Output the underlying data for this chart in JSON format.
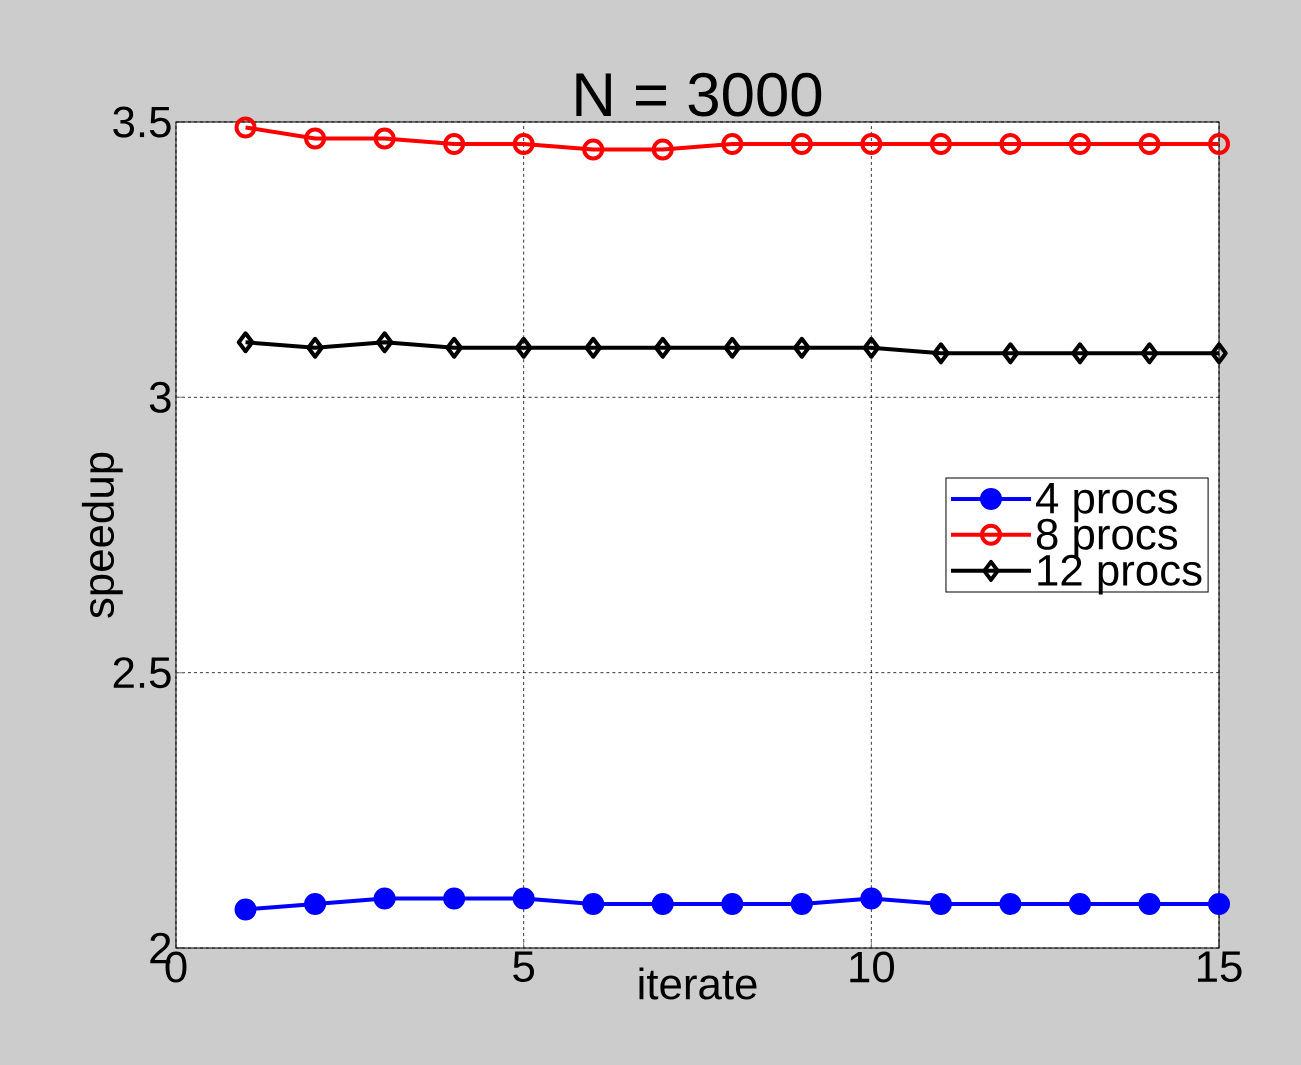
{
  "chart_data": {
    "type": "line",
    "title": "N = 3000",
    "xlabel": "iterate",
    "ylabel": "speedup",
    "x": [
      1,
      2,
      3,
      4,
      5,
      6,
      7,
      8,
      9,
      10,
      11,
      12,
      13,
      14,
      15
    ],
    "xlim": [
      0,
      15
    ],
    "xticks": [
      0,
      5,
      10,
      15
    ],
    "ylim": [
      2,
      3.5
    ],
    "yticks": [
      2,
      2.5,
      3,
      3.5
    ],
    "grid": true,
    "legend": "right",
    "line_style": "solid",
    "series": [
      {
        "name": "4 procs",
        "color": "#0000ff",
        "marker": "circle",
        "values": [
          2.07,
          2.08,
          2.09,
          2.09,
          2.09,
          2.08,
          2.08,
          2.08,
          2.08,
          2.09,
          2.08,
          2.08,
          2.08,
          2.08,
          2.08
        ]
      },
      {
        "name": "8 procs",
        "color": "#ff0000",
        "marker": "circle",
        "values": [
          3.49,
          3.47,
          3.47,
          3.46,
          3.46,
          3.45,
          3.45,
          3.46,
          3.46,
          3.46,
          3.46,
          3.46,
          3.46,
          3.46,
          3.46
        ]
      },
      {
        "name": "12 procs",
        "color": "#000000",
        "marker": "diamond",
        "values": [
          3.1,
          3.09,
          3.1,
          3.09,
          3.09,
          3.09,
          3.09,
          3.09,
          3.09,
          3.09,
          3.08,
          3.08,
          3.08,
          3.08,
          3.08
        ]
      }
    ]
  }
}
